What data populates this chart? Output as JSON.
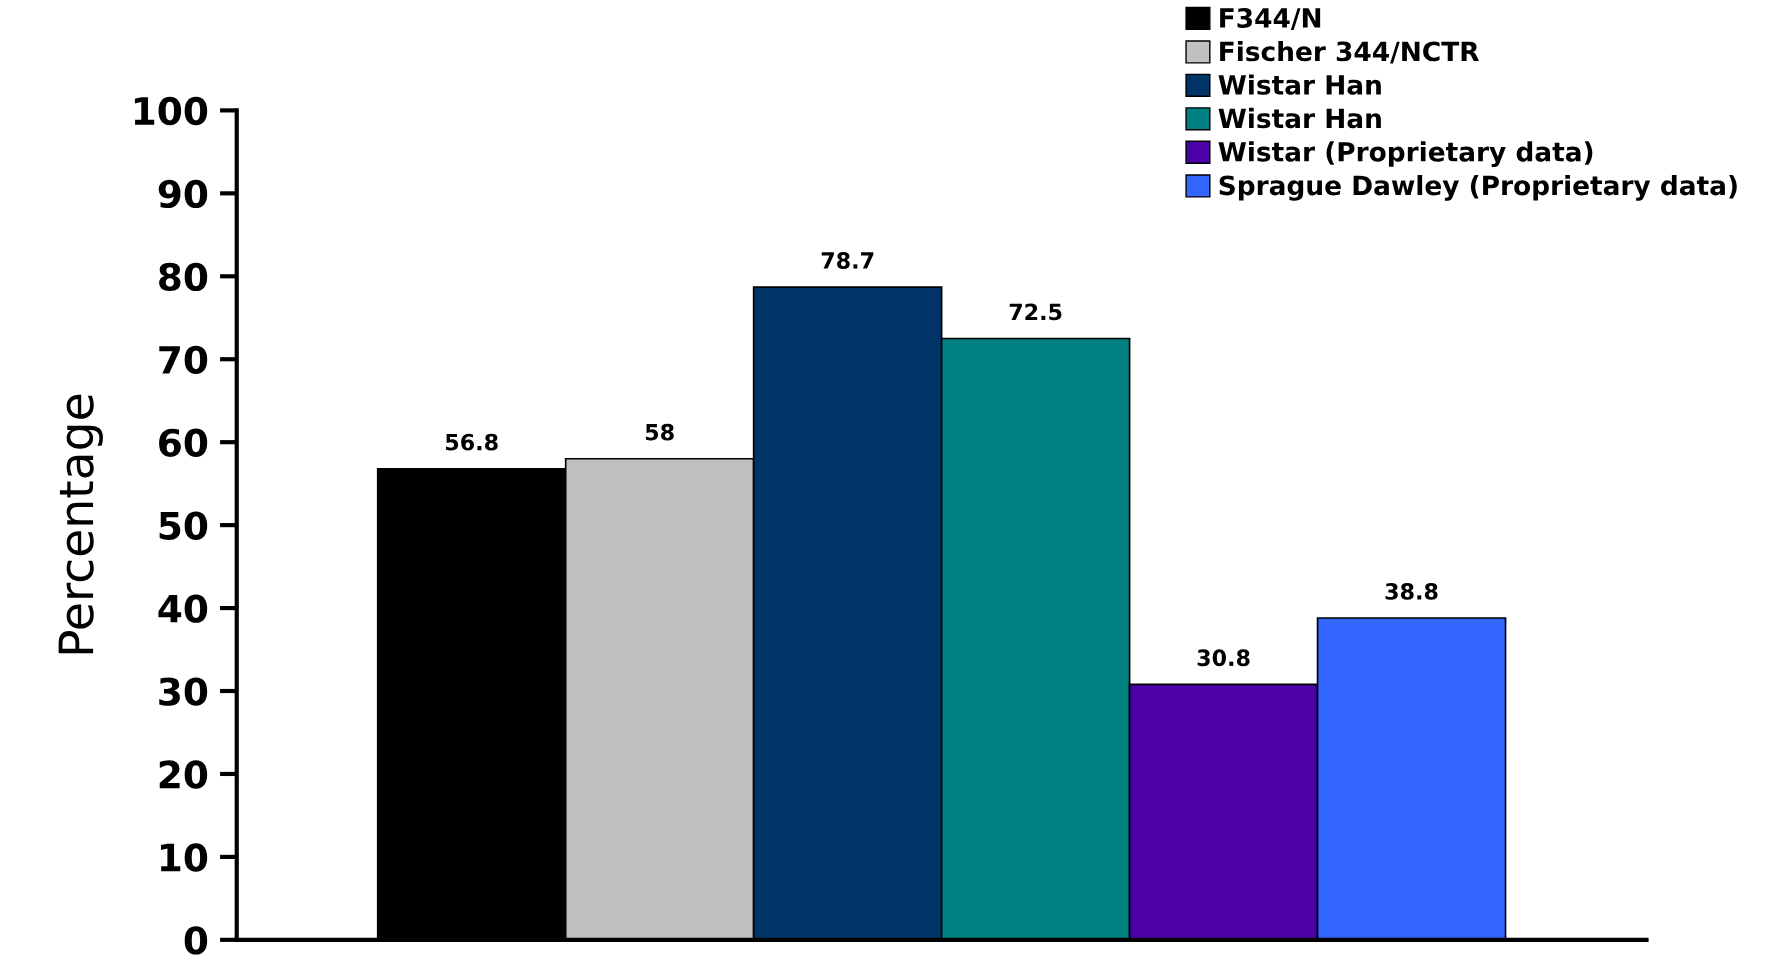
{
  "chart_data": {
    "type": "bar",
    "ylabel": "Percentage",
    "categories": [
      null
    ],
    "series": [
      {
        "name": "F344/N",
        "color": "#000000",
        "values": [
          56.8
        ]
      },
      {
        "name": "Fischer 344/NCTR",
        "color": "#c0c0c0",
        "values": [
          58
        ]
      },
      {
        "name": "Wistar Han",
        "color": "#003366",
        "values": [
          78.7
        ]
      },
      {
        "name": "Wistar Han",
        "color": "#008080",
        "values": [
          72.5
        ]
      },
      {
        "name": "Wistar (Proprietary data)",
        "color": "#4b00a8",
        "values": [
          30.8
        ]
      },
      {
        "name": "Sprague Dawley (Proprietary data)",
        "color": "#3366ff",
        "values": [
          38.8
        ]
      }
    ],
    "ylim": [
      0,
      100
    ],
    "yticks": [
      0,
      10,
      20,
      30,
      40,
      50,
      60,
      70,
      80,
      90,
      100
    ],
    "data_labels": true,
    "legend": "top right",
    "grid": false
  }
}
